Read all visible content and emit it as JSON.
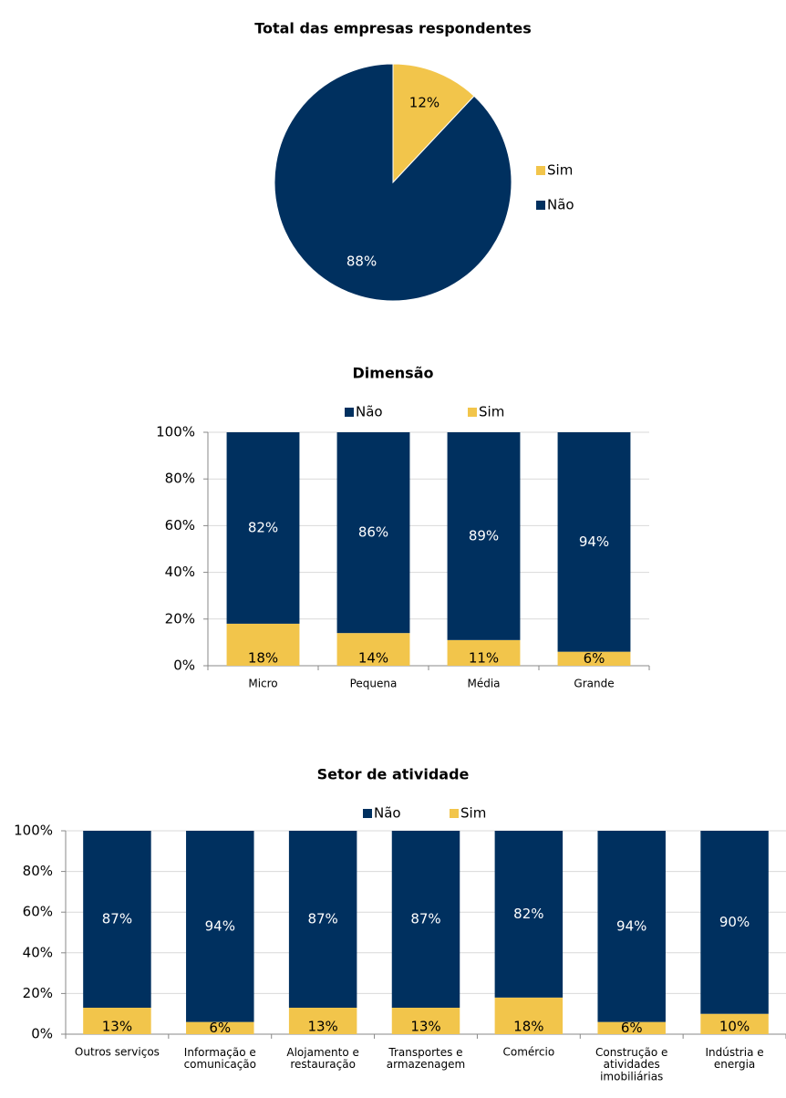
{
  "chart_data": [
    {
      "type": "pie",
      "title": "Total das empresas respondentes",
      "categories": [
        "Sim",
        "Não"
      ],
      "values": [
        12,
        88
      ],
      "value_labels": [
        "12%",
        "88%"
      ],
      "colors": [
        "#F2C54B",
        "#00305F"
      ],
      "legend": "right"
    },
    {
      "type": "bar",
      "stacked": true,
      "title": "Dimensão",
      "categories": [
        "Micro",
        "Pequena",
        "Média",
        "Grande"
      ],
      "series": [
        {
          "name": "Não",
          "color": "#00305F",
          "values": [
            82,
            86,
            89,
            94
          ],
          "value_labels": [
            "82%",
            "86%",
            "89%",
            "94%"
          ]
        },
        {
          "name": "Sim",
          "color": "#F2C54B",
          "values": [
            18,
            14,
            11,
            6
          ],
          "value_labels": [
            "18%",
            "14%",
            "11%",
            "6%"
          ]
        }
      ],
      "ylim": [
        0,
        100
      ],
      "yticks": [
        {
          "value": 0,
          "label": "0%"
        },
        {
          "value": 20,
          "label": "20%"
        },
        {
          "value": 40,
          "label": "40%"
        },
        {
          "value": 60,
          "label": "60%"
        },
        {
          "value": 80,
          "label": "80%"
        },
        {
          "value": 100,
          "label": "100%"
        }
      ],
      "grid": true,
      "legend": "top"
    },
    {
      "type": "bar",
      "stacked": true,
      "title": "Setor de atividade",
      "categories": [
        "Outros serviços",
        "Informação e\ncomunicação",
        "Alojamento e\nrestauração",
        "Transportes e\narmazenagem",
        "Comércio",
        "Construção e\natividades\nimobiliárias",
        "Indústria e\nenergia"
      ],
      "series": [
        {
          "name": "Não",
          "color": "#00305F",
          "values": [
            87,
            94,
            87,
            87,
            82,
            94,
            90
          ],
          "value_labels": [
            "87%",
            "94%",
            "87%",
            "87%",
            "82%",
            "94%",
            "90%"
          ]
        },
        {
          "name": "Sim",
          "color": "#F2C54B",
          "values": [
            13,
            6,
            13,
            13,
            18,
            6,
            10
          ],
          "value_labels": [
            "13%",
            "6%",
            "13%",
            "13%",
            "18%",
            "6%",
            "10%"
          ]
        }
      ],
      "ylim": [
        0,
        100
      ],
      "yticks": [
        {
          "value": 0,
          "label": "0%"
        },
        {
          "value": 20,
          "label": "20%"
        },
        {
          "value": 40,
          "label": "40%"
        },
        {
          "value": 60,
          "label": "60%"
        },
        {
          "value": 80,
          "label": "80%"
        },
        {
          "value": 100,
          "label": "100%"
        }
      ],
      "grid": true,
      "legend": "top"
    }
  ]
}
